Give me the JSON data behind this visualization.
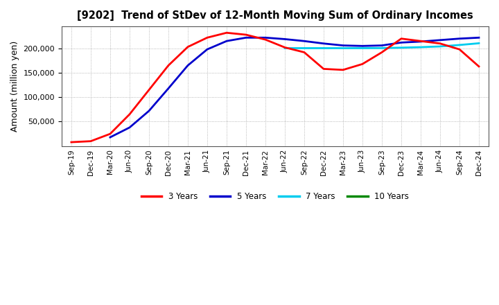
{
  "title": "[9202]  Trend of StDev of 12-Month Moving Sum of Ordinary Incomes",
  "ylabel": "Amount (million yen)",
  "background_color": "#ffffff",
  "plot_bg_color": "#ffffff",
  "grid_color": "#999999",
  "line_colors": {
    "3y": "#ff0000",
    "5y": "#0000cc",
    "7y": "#00ccee",
    "10y": "#008800"
  },
  "legend_labels": [
    "3 Years",
    "5 Years",
    "7 Years",
    "10 Years"
  ],
  "x_labels": [
    "Sep-19",
    "Dec-19",
    "Mar-20",
    "Jun-20",
    "Sep-20",
    "Dec-20",
    "Mar-21",
    "Jun-21",
    "Sep-21",
    "Dec-21",
    "Mar-22",
    "Jun-22",
    "Sep-22",
    "Dec-22",
    "Mar-23",
    "Jun-23",
    "Sep-23",
    "Dec-23",
    "Mar-24",
    "Jun-24",
    "Sep-24",
    "Dec-24"
  ],
  "ylim_low": 0,
  "ylim_high": 245000,
  "yticks": [
    50000,
    100000,
    150000,
    200000
  ],
  "series_3y": [
    8000,
    10000,
    25000,
    65000,
    115000,
    165000,
    203000,
    222000,
    232000,
    228000,
    218000,
    202000,
    192000,
    158000,
    156000,
    168000,
    192000,
    220000,
    215000,
    210000,
    198000,
    163000
  ],
  "series_5y": [
    null,
    null,
    18000,
    38000,
    72000,
    118000,
    165000,
    198000,
    215000,
    222000,
    222000,
    219000,
    215000,
    210000,
    206000,
    205000,
    206000,
    212000,
    214000,
    217000,
    220000,
    222000
  ],
  "series_7y": [
    null,
    null,
    null,
    null,
    null,
    null,
    null,
    null,
    null,
    null,
    null,
    200500,
    200500,
    200500,
    200500,
    200500,
    200700,
    201500,
    202500,
    204000,
    207000,
    210500
  ],
  "series_10y": [
    null,
    null,
    null,
    null,
    null,
    null,
    null,
    null,
    null,
    null,
    null,
    null,
    null,
    null,
    null,
    null,
    null,
    null,
    null,
    null,
    null,
    null
  ]
}
